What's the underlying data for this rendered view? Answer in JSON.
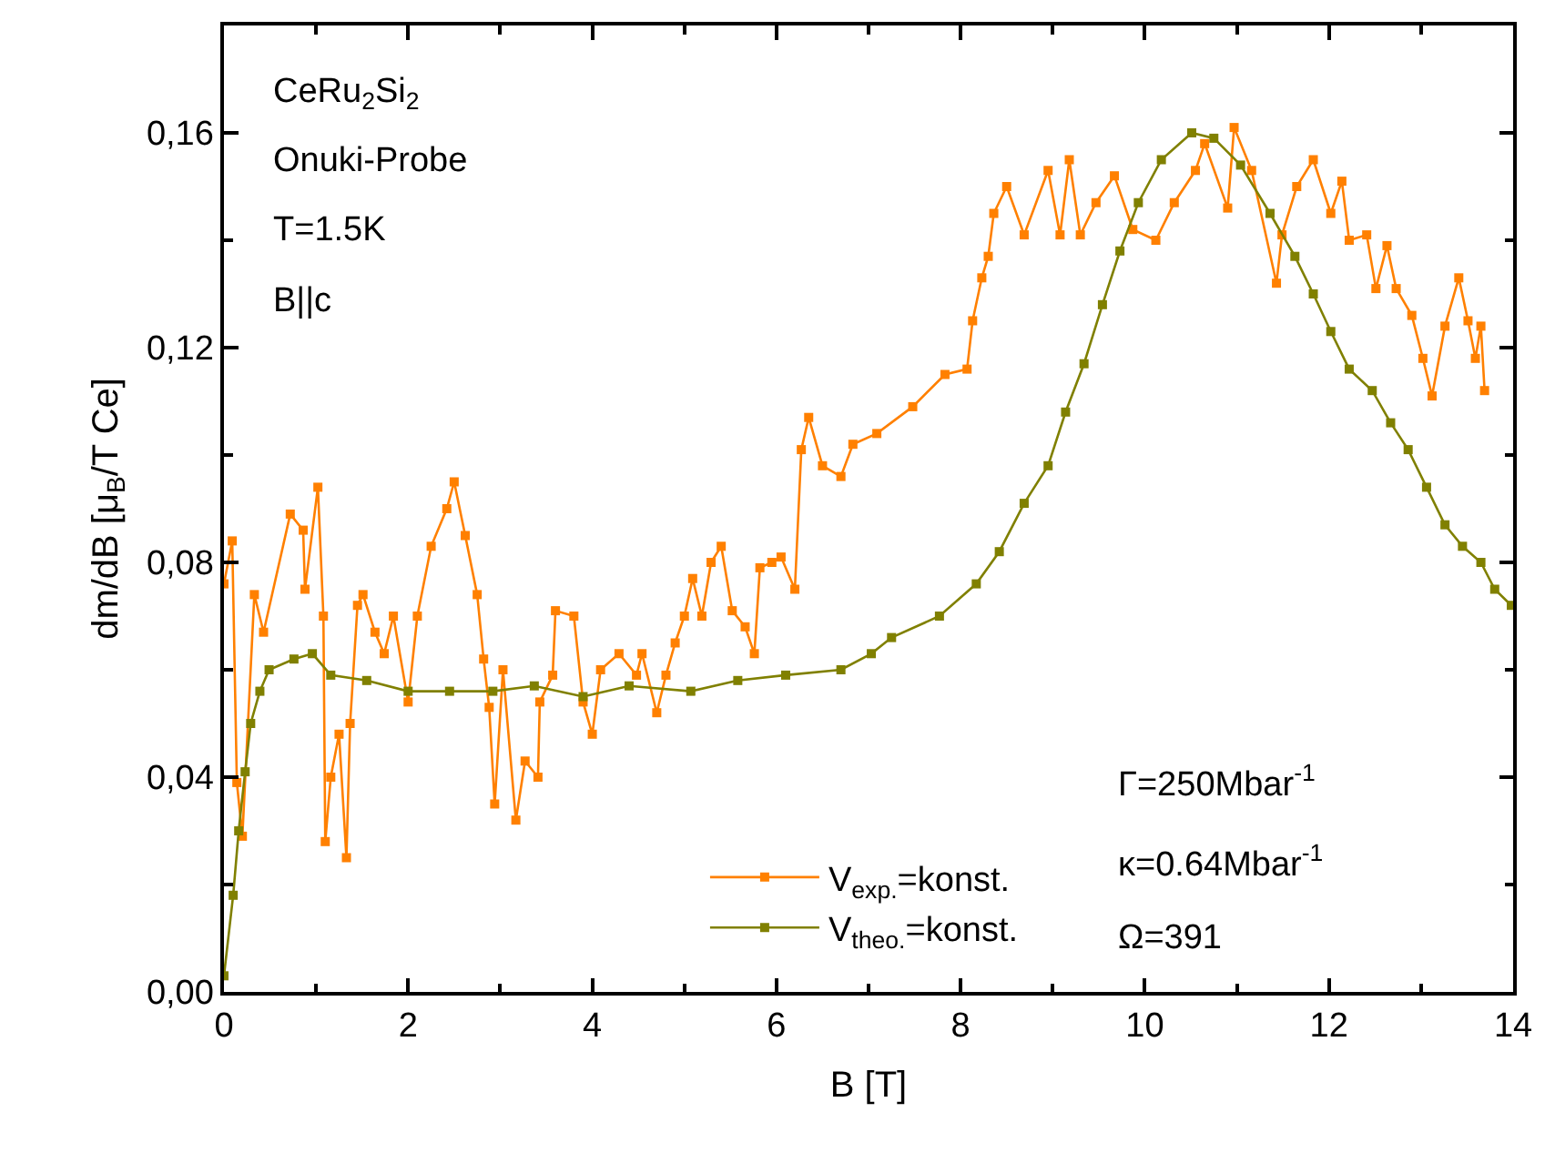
{
  "chart_data": {
    "type": "line",
    "xlabel": "B [T]",
    "ylabel": "dm/dB [μ$_{B}$/T Ce]",
    "xlim": [
      0,
      14
    ],
    "xticks": [
      0,
      {
        "value": 1,
        "label": null
      },
      2,
      {
        "value": 3,
        "label": null
      },
      4,
      {
        "value": 5,
        "label": null
      },
      6,
      {
        "value": 7,
        "label": null
      },
      8,
      {
        "value": 9,
        "label": null
      },
      10,
      {
        "value": 11,
        "label": null
      },
      12,
      {
        "value": 13,
        "label": null
      },
      14
    ],
    "ylim": [
      0,
      0.18
    ],
    "yticks": [
      {
        "value": 0,
        "label": "0,00"
      },
      {
        "value": 0.02,
        "label": null
      },
      {
        "value": 0.04,
        "label": "0,04"
      },
      {
        "value": 0.06,
        "label": null
      },
      {
        "value": 0.08,
        "label": "0,08"
      },
      {
        "value": 0.1,
        "label": null
      },
      {
        "value": 0.12,
        "label": "0,12"
      },
      {
        "value": 0.14,
        "label": null
      },
      {
        "value": 0.16,
        "label": "0,16"
      }
    ],
    "legend": "bottom right",
    "marker": "square",
    "line_style": "solid",
    "annotations": [
      "CeRu$_{2}$Si$_{2}$",
      "Onuki-Probe",
      "T=1.5K",
      "B||c",
      "Γ=250Mbar$^{-1}$",
      "κ=0.64Mbar$^{-1}$",
      "Ω=391"
    ],
    "series": [
      {
        "name": "V$_{exp.}$=konst.",
        "color": "#ff8000",
        "x": [
          0.0,
          0.09,
          0.14,
          0.2,
          0.33,
          0.43,
          0.72,
          0.86,
          0.88,
          1.02,
          1.08,
          1.1,
          1.16,
          1.25,
          1.33,
          1.37,
          1.45,
          1.51,
          1.64,
          1.74,
          1.84,
          2.0,
          2.1,
          2.25,
          2.42,
          2.5,
          2.62,
          2.75,
          2.82,
          2.88,
          2.94,
          3.03,
          3.17,
          3.27,
          3.41,
          3.43,
          3.57,
          3.6,
          3.8,
          3.9,
          4.0,
          4.09,
          4.29,
          4.48,
          4.54,
          4.7,
          4.8,
          4.9,
          5.0,
          5.09,
          5.19,
          5.29,
          5.4,
          5.52,
          5.66,
          5.76,
          5.82,
          5.95,
          6.05,
          6.2,
          6.27,
          6.35,
          6.5,
          6.7,
          6.83,
          7.09,
          7.48,
          7.83,
          8.07,
          8.13,
          8.23,
          8.3,
          8.36,
          8.5,
          8.69,
          8.95,
          9.08,
          9.18,
          9.3,
          9.47,
          9.67,
          9.87,
          10.12,
          10.32,
          10.55,
          10.65,
          10.9,
          10.97,
          11.16,
          11.43,
          11.49,
          11.65,
          11.83,
          12.02,
          12.14,
          12.22,
          12.41,
          12.51,
          12.63,
          12.73,
          12.9,
          13.02,
          13.12,
          13.26,
          13.41,
          13.51,
          13.59,
          13.65,
          13.69
        ],
        "values": [
          0.076,
          0.084,
          0.039,
          0.029,
          0.074,
          0.067,
          0.089,
          0.086,
          0.075,
          0.094,
          0.07,
          0.028,
          0.04,
          0.048,
          0.025,
          0.05,
          0.072,
          0.074,
          0.067,
          0.063,
          0.07,
          0.054,
          0.07,
          0.083,
          0.09,
          0.095,
          0.085,
          0.074,
          0.062,
          0.053,
          0.035,
          0.06,
          0.032,
          0.043,
          0.04,
          0.054,
          0.059,
          0.071,
          0.07,
          0.054,
          0.048,
          0.06,
          0.063,
          0.059,
          0.063,
          0.052,
          0.059,
          0.065,
          0.07,
          0.077,
          0.07,
          0.08,
          0.083,
          0.071,
          0.068,
          0.063,
          0.079,
          0.08,
          0.081,
          0.075,
          0.101,
          0.107,
          0.098,
          0.096,
          0.102,
          0.104,
          0.109,
          0.115,
          0.116,
          0.125,
          0.133,
          0.137,
          0.145,
          0.15,
          0.141,
          0.153,
          0.141,
          0.155,
          0.141,
          0.147,
          0.152,
          0.142,
          0.14,
          0.147,
          0.153,
          0.158,
          0.146,
          0.161,
          0.153,
          0.132,
          0.141,
          0.15,
          0.155,
          0.145,
          0.151,
          0.14,
          0.141,
          0.131,
          0.139,
          0.131,
          0.126,
          0.118,
          0.111,
          0.124,
          0.133,
          0.125,
          0.118,
          0.124,
          0.112
        ]
      },
      {
        "name": "V$_{theo.}$=konst.",
        "color": "#808000",
        "x": [
          0.0,
          0.1,
          0.16,
          0.23,
          0.29,
          0.39,
          0.49,
          0.76,
          0.96,
          1.16,
          1.55,
          2.0,
          2.45,
          2.92,
          3.37,
          3.9,
          4.4,
          5.07,
          5.58,
          6.1,
          6.7,
          7.03,
          7.25,
          7.77,
          8.17,
          8.42,
          8.69,
          8.95,
          9.14,
          9.34,
          9.54,
          9.73,
          9.93,
          10.18,
          10.51,
          10.75,
          11.04,
          11.36,
          11.63,
          11.83,
          12.02,
          12.22,
          12.47,
          12.67,
          12.86,
          13.06,
          13.26,
          13.45,
          13.65,
          13.8,
          13.98
        ],
        "values": [
          0.003,
          0.018,
          0.03,
          0.041,
          0.05,
          0.056,
          0.06,
          0.062,
          0.063,
          0.059,
          0.058,
          0.056,
          0.056,
          0.056,
          0.057,
          0.055,
          0.057,
          0.056,
          0.058,
          0.059,
          0.06,
          0.063,
          0.066,
          0.07,
          0.076,
          0.082,
          0.091,
          0.098,
          0.108,
          0.117,
          0.128,
          0.138,
          0.147,
          0.155,
          0.16,
          0.159,
          0.154,
          0.145,
          0.137,
          0.13,
          0.123,
          0.116,
          0.112,
          0.106,
          0.101,
          0.094,
          0.087,
          0.083,
          0.08,
          0.075,
          0.072
        ]
      }
    ]
  }
}
